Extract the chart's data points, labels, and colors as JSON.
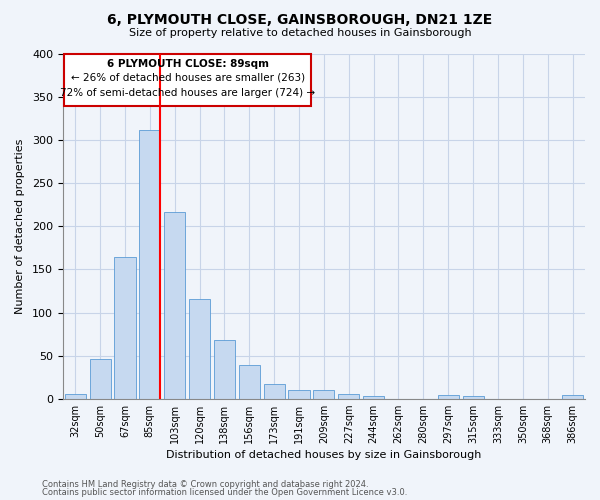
{
  "title": "6, PLYMOUTH CLOSE, GAINSBOROUGH, DN21 1ZE",
  "subtitle": "Size of property relative to detached houses in Gainsborough",
  "xlabel": "Distribution of detached houses by size in Gainsborough",
  "ylabel": "Number of detached properties",
  "footnote1": "Contains HM Land Registry data © Crown copyright and database right 2024.",
  "footnote2": "Contains public sector information licensed under the Open Government Licence v3.0.",
  "annotation_line1": "6 PLYMOUTH CLOSE: 89sqm",
  "annotation_line2": "← 26% of detached houses are smaller (263)",
  "annotation_line3": "72% of semi-detached houses are larger (724) →",
  "categories": [
    "32sqm",
    "50sqm",
    "67sqm",
    "85sqm",
    "103sqm",
    "120sqm",
    "138sqm",
    "156sqm",
    "173sqm",
    "191sqm",
    "209sqm",
    "227sqm",
    "244sqm",
    "262sqm",
    "280sqm",
    "297sqm",
    "315sqm",
    "333sqm",
    "350sqm",
    "368sqm",
    "386sqm"
  ],
  "values": [
    6,
    46,
    165,
    312,
    217,
    116,
    68,
    39,
    17,
    10,
    10,
    6,
    3,
    0,
    0,
    4,
    3,
    0,
    0,
    0,
    4
  ],
  "bar_color": "#c6d9f0",
  "bar_edge_color": "#5b9bd5",
  "red_line_bar_index": 3,
  "ylim": [
    0,
    400
  ],
  "yticks": [
    0,
    50,
    100,
    150,
    200,
    250,
    300,
    350,
    400
  ],
  "annotation_box_color": "#cc0000",
  "background_color": "#f0f4fa",
  "grid_color": "#c8d4e8"
}
